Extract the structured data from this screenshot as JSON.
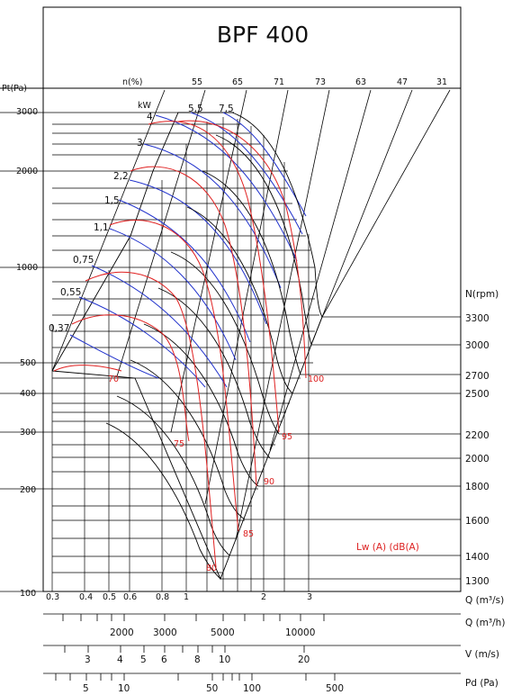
{
  "chart_data": {
    "type": "line",
    "title": "BPF 400",
    "y_axis": {
      "label": "Pt(Pa)",
      "scale": "log",
      "range": [
        100,
        3000
      ],
      "tick_labels": [
        "3000",
        "2000",
        "1000",
        "500",
        "400",
        "300",
        "200",
        "100"
      ]
    },
    "x_axis": {
      "label": "Q (m³/s)",
      "scale": "log",
      "range": [
        0.3,
        3
      ],
      "tick_labels": [
        "0.3",
        "0.4",
        "0.5",
        "0.6",
        "0.8",
        "1",
        "2",
        "3"
      ]
    },
    "efficiency_label": "n(%)",
    "efficiency_values": [
      "55",
      "65",
      "71",
      "73",
      "63",
      "47",
      "31"
    ],
    "power_label": "kW",
    "power_values": [
      "0,37",
      "0,55",
      "0,75",
      "1,1",
      "1,5",
      "2,2",
      "3",
      "4",
      "5,5",
      "7,5"
    ],
    "speed_label": "N(rpm)",
    "speed_values": [
      "3300",
      "3000",
      "2700",
      "2500",
      "2200",
      "2000",
      "1800",
      "1600",
      "1400",
      "1300"
    ],
    "noise_label": "Lw (A) (dB(A)",
    "noise_values": [
      "70",
      "75",
      "80",
      "85",
      "90",
      "95",
      "100"
    ],
    "secondary_scales": [
      {
        "label": "Q (m³/h)",
        "tick_labels": [
          "2000",
          "3000",
          "5000",
          "10000"
        ]
      },
      {
        "label": "V (m/s)",
        "tick_labels": [
          "3",
          "4",
          "5",
          "6",
          "8",
          "10",
          "20"
        ]
      },
      {
        "label": "Pd (Pa)",
        "tick_labels": [
          "5",
          "10",
          "50",
          "100",
          "500"
        ]
      }
    ],
    "grid": true
  }
}
